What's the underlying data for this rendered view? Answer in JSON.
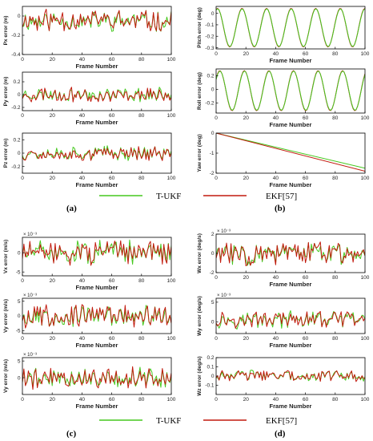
{
  "colors": {
    "tukf": "#45c81e",
    "ekf": "#c21a0e",
    "axis": "#000000"
  },
  "legend": {
    "tukf_label": "T-UKF",
    "ekf_label": "EKF[57]"
  },
  "captions": [
    "(a)",
    "(b)",
    "(c)",
    "(d)"
  ],
  "chart_data": [
    {
      "id": "px",
      "type": "line",
      "ylabel": "Px error (m)",
      "xlabel": "Frame Number",
      "xlim": [
        0,
        100
      ],
      "xticks": [
        0,
        20,
        40,
        60,
        80,
        100
      ],
      "ylim": [
        -0.4,
        0.1
      ],
      "yticks": [
        "0",
        "-0.2",
        "-0.4"
      ],
      "ytick_values": [
        0,
        -0.2,
        -0.4
      ],
      "exponent": "",
      "signal": "noise",
      "noise": {
        "mean": -0.05,
        "amp": 0.09,
        "seed": 11
      }
    },
    {
      "id": "py",
      "type": "line",
      "ylabel": "Py error (m)",
      "xlabel": "Frame Number",
      "xlim": [
        0,
        100
      ],
      "xticks": [
        0,
        20,
        40,
        60,
        80,
        100
      ],
      "ylim": [
        -0.25,
        0.35
      ],
      "yticks": [
        "0.2",
        "0",
        "-0.2"
      ],
      "ytick_values": [
        0.2,
        0,
        -0.2
      ],
      "exponent": "",
      "signal": "noise",
      "noise": {
        "mean": 0.0,
        "amp": 0.09,
        "seed": 23
      }
    },
    {
      "id": "pz",
      "type": "line",
      "ylabel": "Pz error (m)",
      "xlabel": "Frame Number",
      "xlim": [
        0,
        100
      ],
      "xticks": [
        0,
        20,
        40,
        60,
        80,
        100
      ],
      "ylim": [
        -0.3,
        0.3
      ],
      "yticks": [
        "0.2",
        "0",
        "-0.2"
      ],
      "ytick_values": [
        0.2,
        0,
        -0.2
      ],
      "exponent": "",
      "signal": "noise",
      "noise": {
        "mean": 0.0,
        "amp": 0.09,
        "seed": 37
      }
    },
    {
      "id": "pitch",
      "type": "line",
      "ylabel": "Pitch error (deg)",
      "xlabel": "Frame Number",
      "xlim": [
        0,
        100
      ],
      "xticks": [
        0,
        20,
        40,
        60,
        80,
        100
      ],
      "ylim": [
        -0.31,
        0.06
      ],
      "yticks": [
        "0",
        "-0.1",
        "-0.2",
        "-0.3"
      ],
      "ytick_values": [
        0,
        -0.1,
        -0.2,
        -0.3
      ],
      "exponent": "",
      "signal": "sine",
      "sine": {
        "offset": -0.125,
        "amp": 0.165,
        "period": 16.5,
        "phase": 1.2
      }
    },
    {
      "id": "roll",
      "type": "line",
      "ylabel": "Roll error (deg)",
      "xlabel": "Frame Number",
      "xlim": [
        0,
        100
      ],
      "xticks": [
        0,
        20,
        40,
        60,
        80,
        100
      ],
      "ylim": [
        -0.35,
        0.3
      ],
      "yticks": [
        "0.2",
        "0",
        "-0.2"
      ],
      "ytick_values": [
        0.2,
        0,
        -0.2
      ],
      "exponent": "",
      "signal": "sine",
      "sine": {
        "offset": -0.02,
        "amp": 0.29,
        "period": 16.5,
        "phase": 0.6
      }
    },
    {
      "id": "yaw",
      "type": "line",
      "ylabel": "Yaw error (deg)",
      "xlabel": "Frame Number",
      "xlim": [
        0,
        100
      ],
      "xticks": [
        0,
        20,
        40,
        60,
        80,
        100
      ],
      "ylim": [
        -2,
        0
      ],
      "yticks": [
        "0",
        "-1",
        "-2"
      ],
      "ytick_values": [
        0,
        -1,
        -2
      ],
      "exponent": "",
      "signal": "linear",
      "series": [
        {
          "name": "T-UKF",
          "x": [
            0,
            100
          ],
          "y": [
            0,
            -1.75
          ]
        },
        {
          "name": "EKF[57]",
          "x": [
            0,
            100
          ],
          "y": [
            0,
            -1.9
          ]
        }
      ]
    },
    {
      "id": "vx",
      "type": "line",
      "ylabel": "Vx error (m/s)",
      "xlabel": "Frame Number",
      "xlim": [
        0,
        100
      ],
      "xticks": [
        0,
        20,
        40,
        60,
        80,
        100
      ],
      "ylim": [
        -6,
        4
      ],
      "yticks": [
        "0",
        "-5"
      ],
      "ytick_values": [
        0,
        -5
      ],
      "exponent": "× 10⁻³",
      "signal": "noise",
      "noise": {
        "mean": 0.0,
        "amp": 2.6,
        "seed": 51
      }
    },
    {
      "id": "vy",
      "type": "line",
      "ylabel": "Vy error (m/s)",
      "xlabel": "Frame Number",
      "xlim": [
        0,
        100
      ],
      "xticks": [
        0,
        20,
        40,
        60,
        80,
        100
      ],
      "ylim": [
        -6,
        6
      ],
      "yticks": [
        "5",
        "0",
        "-5"
      ],
      "ytick_values": [
        5,
        0,
        -5
      ],
      "exponent": "× 10⁻³",
      "signal": "noise",
      "noise": {
        "mean": 0.0,
        "amp": 3.0,
        "seed": 67
      }
    },
    {
      "id": "vy2",
      "type": "line",
      "ylabel": "Vy error (m/s)",
      "xlabel": "Frame Number",
      "xlim": [
        0,
        100
      ],
      "xticks": [
        0,
        20,
        40,
        60,
        80,
        100
      ],
      "ylim": [
        -5,
        6
      ],
      "yticks": [
        "5",
        "0"
      ],
      "ytick_values": [
        5,
        0
      ],
      "exponent": "× 10⁻³",
      "signal": "noise",
      "noise": {
        "mean": 0.0,
        "amp": 2.6,
        "seed": 79
      }
    },
    {
      "id": "wx",
      "type": "line",
      "ylabel": "Wx error (deg/s)",
      "xlabel": "Frame Number",
      "xlim": [
        0,
        100
      ],
      "xticks": [
        0,
        20,
        40,
        60,
        80,
        100
      ],
      "ylim": [
        -2,
        2
      ],
      "yticks": [
        "2",
        "0",
        "-2"
      ],
      "ytick_values": [
        2,
        0,
        -2
      ],
      "exponent": "× 10⁻³",
      "signal": "noise",
      "noise": {
        "mean": 0.0,
        "amp": 1.0,
        "seed": 83
      }
    },
    {
      "id": "wy",
      "type": "line",
      "ylabel": "Wy error (deg/s)",
      "xlabel": "Frame Number",
      "xlim": [
        0,
        100
      ],
      "xticks": [
        0,
        20,
        40,
        60,
        80,
        100
      ],
      "ylim": [
        -3,
        6
      ],
      "yticks": [
        "5",
        "0"
      ],
      "ytick_values": [
        5,
        0
      ],
      "exponent": "× 10⁻³",
      "signal": "noise",
      "noise": {
        "mean": 0.5,
        "amp": 1.8,
        "seed": 97
      }
    },
    {
      "id": "wz",
      "type": "line",
      "ylabel": "Wz error (deg/s)",
      "xlabel": "Frame Number",
      "xlim": [
        0,
        100
      ],
      "xticks": [
        0,
        20,
        40,
        60,
        80,
        100
      ],
      "ylim": [
        -0.2,
        0.2
      ],
      "yticks": [
        "0.2",
        "0.1",
        "0",
        "-0.1"
      ],
      "ytick_values": [
        0.2,
        0.1,
        0,
        -0.1
      ],
      "exponent": "",
      "signal": "noise",
      "noise": {
        "mean": 0.0,
        "amp": 0.05,
        "seed": 103
      }
    }
  ]
}
